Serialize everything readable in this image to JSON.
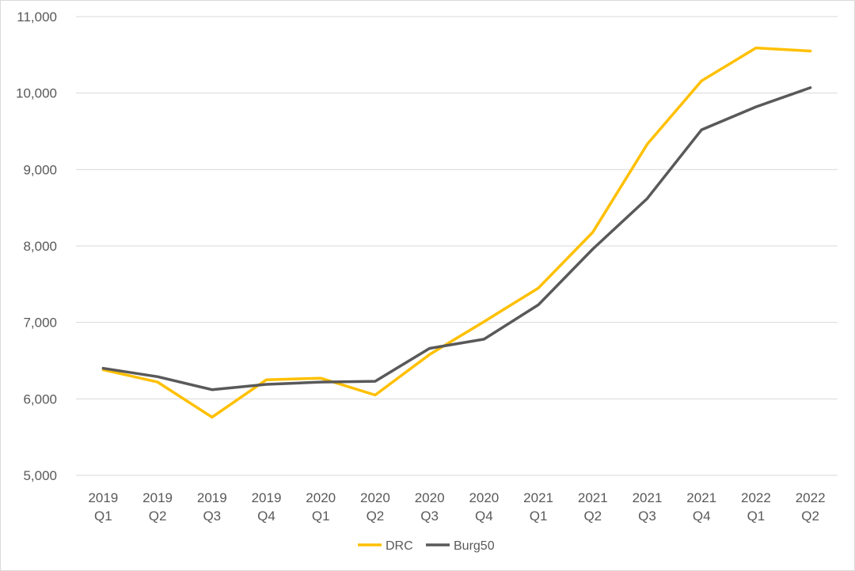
{
  "chart_data": {
    "type": "line",
    "categories": [
      [
        "2019",
        "Q1"
      ],
      [
        "2019",
        "Q2"
      ],
      [
        "2019",
        "Q3"
      ],
      [
        "2019",
        "Q4"
      ],
      [
        "2020",
        "Q1"
      ],
      [
        "2020",
        "Q2"
      ],
      [
        "2020",
        "Q3"
      ],
      [
        "2020",
        "Q4"
      ],
      [
        "2021",
        "Q1"
      ],
      [
        "2021",
        "Q2"
      ],
      [
        "2021",
        "Q3"
      ],
      [
        "2021",
        "Q4"
      ],
      [
        "2022",
        "Q1"
      ],
      [
        "2022",
        "Q2"
      ]
    ],
    "series": [
      {
        "name": "DRC",
        "color": "#ffc000",
        "values": [
          6380,
          6220,
          5760,
          6250,
          6270,
          6050,
          6580,
          7010,
          7450,
          8180,
          9330,
          10160,
          10590,
          10550
        ]
      },
      {
        "name": "Burg50",
        "color": "#595959",
        "values": [
          6400,
          6290,
          6120,
          6190,
          6220,
          6230,
          6660,
          6780,
          7230,
          7960,
          8620,
          9520,
          9820,
          10070
        ]
      }
    ],
    "ylim": [
      5000,
      11000
    ],
    "yticks": [
      5000,
      6000,
      7000,
      8000,
      9000,
      10000,
      11000
    ],
    "ytick_labels": [
      "5,000",
      "6,000",
      "7,000",
      "8,000",
      "9,000",
      "10,000",
      "11,000"
    ],
    "grid": true,
    "legend_position": "bottom"
  }
}
